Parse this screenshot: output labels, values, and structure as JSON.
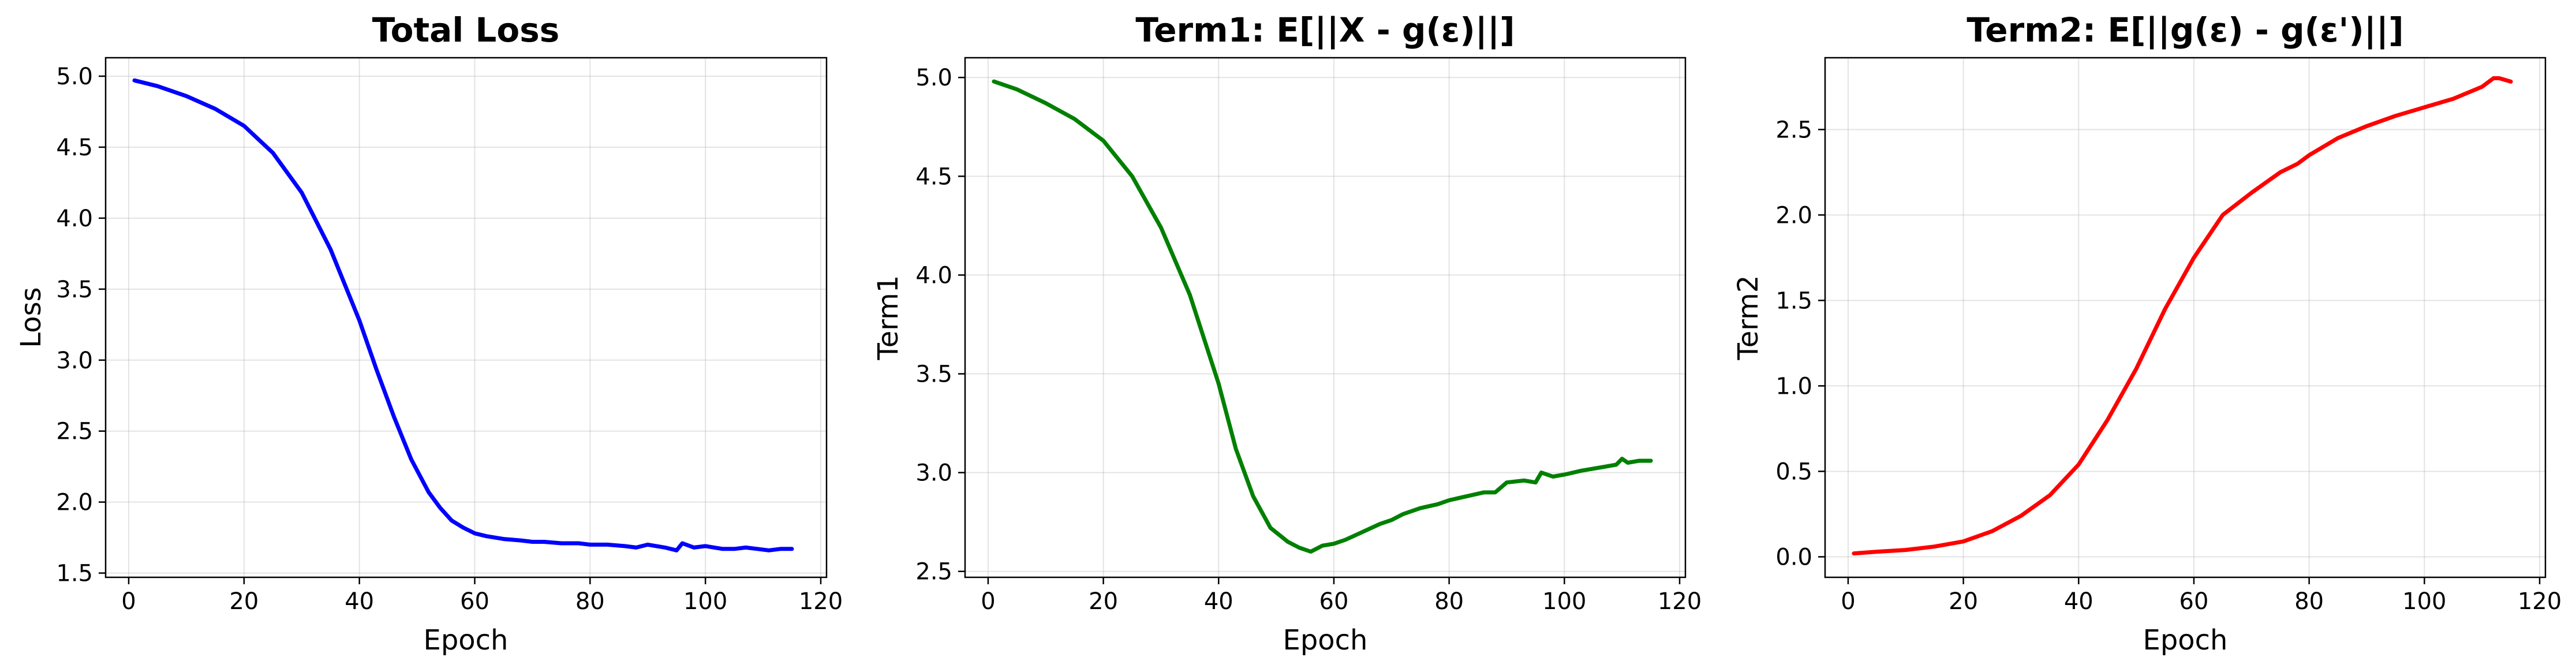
{
  "chart_data": [
    {
      "type": "line",
      "title": "Total Loss",
      "xlabel": "Epoch",
      "ylabel": "Loss",
      "xlim": [
        -4,
        121
      ],
      "ylim": [
        1.47,
        5.13
      ],
      "xticks": [
        0,
        20,
        40,
        60,
        80,
        100,
        120
      ],
      "yticks": [
        1.5,
        2.0,
        2.5,
        3.0,
        3.5,
        4.0,
        4.5,
        5.0
      ],
      "tick_decimals": 1,
      "grid": true,
      "color": "#0000ff",
      "x": [
        1,
        5,
        10,
        15,
        20,
        25,
        30,
        35,
        40,
        43,
        46,
        49,
        52,
        54,
        56,
        58,
        60,
        62,
        65,
        68,
        70,
        72,
        75,
        78,
        80,
        83,
        86,
        88,
        90,
        93,
        95,
        96,
        98,
        100,
        103,
        105,
        107,
        109,
        111,
        113,
        115
      ],
      "y": [
        4.97,
        4.93,
        4.86,
        4.77,
        4.65,
        4.46,
        4.18,
        3.78,
        3.28,
        2.93,
        2.6,
        2.3,
        2.07,
        1.96,
        1.87,
        1.82,
        1.78,
        1.76,
        1.74,
        1.73,
        1.72,
        1.72,
        1.71,
        1.71,
        1.7,
        1.7,
        1.69,
        1.68,
        1.7,
        1.68,
        1.66,
        1.71,
        1.68,
        1.69,
        1.67,
        1.67,
        1.68,
        1.67,
        1.66,
        1.67,
        1.67
      ]
    },
    {
      "type": "line",
      "title": "Term1: E[||X - g(ε)||]",
      "xlabel": "Epoch",
      "ylabel": "Term1",
      "xlim": [
        -4,
        121
      ],
      "ylim": [
        2.47,
        5.1
      ],
      "xticks": [
        0,
        20,
        40,
        60,
        80,
        100,
        120
      ],
      "yticks": [
        2.5,
        3.0,
        3.5,
        4.0,
        4.5,
        5.0
      ],
      "tick_decimals": 1,
      "grid": true,
      "color": "#008000",
      "x": [
        1,
        5,
        10,
        15,
        20,
        25,
        30,
        35,
        40,
        43,
        46,
        49,
        52,
        54,
        56,
        58,
        60,
        62,
        65,
        68,
        70,
        72,
        75,
        78,
        80,
        83,
        86,
        88,
        90,
        93,
        95,
        96,
        98,
        100,
        103,
        105,
        107,
        109,
        110,
        111,
        113,
        115
      ],
      "y": [
        4.98,
        4.94,
        4.87,
        4.79,
        4.68,
        4.5,
        4.24,
        3.9,
        3.45,
        3.12,
        2.88,
        2.72,
        2.65,
        2.62,
        2.6,
        2.63,
        2.64,
        2.66,
        2.7,
        2.74,
        2.76,
        2.79,
        2.82,
        2.84,
        2.86,
        2.88,
        2.9,
        2.9,
        2.95,
        2.96,
        2.95,
        3.0,
        2.98,
        2.99,
        3.01,
        3.02,
        3.03,
        3.04,
        3.07,
        3.05,
        3.06,
        3.06
      ]
    },
    {
      "type": "line",
      "title": "Term2: E[||g(ε) - g(ε')||]",
      "xlabel": "Epoch",
      "ylabel": "Term2",
      "xlim": [
        -4,
        121
      ],
      "ylim": [
        -0.12,
        2.92
      ],
      "xticks": [
        0,
        20,
        40,
        60,
        80,
        100,
        120
      ],
      "yticks": [
        0.0,
        0.5,
        1.0,
        1.5,
        2.0,
        2.5
      ],
      "tick_decimals": 1,
      "grid": true,
      "color": "#ff0000",
      "x": [
        1,
        5,
        10,
        15,
        20,
        25,
        30,
        35,
        40,
        45,
        50,
        55,
        60,
        65,
        70,
        75,
        78,
        80,
        85,
        90,
        95,
        100,
        105,
        110,
        112,
        113,
        115
      ],
      "y": [
        0.02,
        0.03,
        0.04,
        0.06,
        0.09,
        0.15,
        0.24,
        0.36,
        0.54,
        0.8,
        1.1,
        1.45,
        1.75,
        2.0,
        2.13,
        2.25,
        2.3,
        2.35,
        2.45,
        2.52,
        2.58,
        2.63,
        2.68,
        2.75,
        2.8,
        2.8,
        2.78
      ]
    }
  ]
}
